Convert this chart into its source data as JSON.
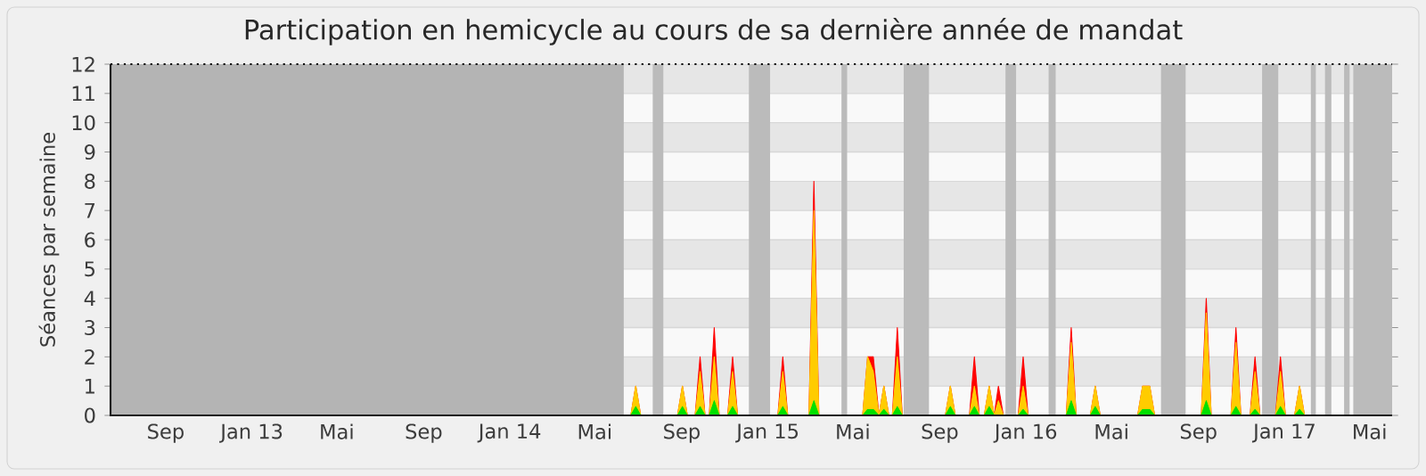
{
  "chart_data": {
    "type": "area",
    "title": "Participation en hemicycle au cours de sa dernière année de mandat",
    "ylabel": "Séances par semaine",
    "x": [
      "2014-06-11",
      "2014-06-21",
      "2014-06-28",
      "2014-07-05",
      "2014-08-26",
      "2014-09-02",
      "2014-09-09",
      "2014-09-20",
      "2014-09-27",
      "2014-10-04",
      "2014-10-10",
      "2014-10-17",
      "2014-10-24",
      "2014-11-05",
      "2014-11-12",
      "2014-11-19",
      "2015-01-15",
      "2015-01-22",
      "2015-01-29",
      "2015-02-28",
      "2015-03-07",
      "2015-03-14",
      "2015-05-15",
      "2015-05-22",
      "2015-05-30",
      "2015-06-07",
      "2015-06-14",
      "2015-06-21",
      "2015-06-26",
      "2015-07-03",
      "2015-07-10",
      "2015-09-09",
      "2015-09-16",
      "2015-09-23",
      "2015-10-13",
      "2015-10-20",
      "2015-10-27",
      "2015-11-03",
      "2015-11-10",
      "2015-11-17",
      "2015-11-23",
      "2015-11-30",
      "2015-12-21",
      "2015-12-28",
      "2016-01-04",
      "2016-02-27",
      "2016-03-05",
      "2016-03-12",
      "2016-04-01",
      "2016-04-08",
      "2016-04-15",
      "2016-06-07",
      "2016-06-14",
      "2016-06-24",
      "2016-07-01",
      "2016-09-05",
      "2016-09-12",
      "2016-09-19",
      "2016-10-17",
      "2016-10-24",
      "2016-10-31",
      "2016-11-13",
      "2016-11-20",
      "2016-11-27",
      "2016-12-19",
      "2016-12-26",
      "2017-01-02",
      "2017-01-15",
      "2017-01-22",
      "2017-01-29",
      "2017-05-20"
    ],
    "series": [
      {
        "color": "#ff0000",
        "values": [
          0,
          0,
          1,
          0,
          0,
          1,
          0,
          0,
          2,
          0,
          0,
          3,
          0,
          0,
          2,
          0,
          0,
          2,
          0,
          0,
          8,
          0,
          0,
          2,
          2,
          0,
          1,
          0,
          0,
          3,
          0,
          0,
          1,
          0,
          0,
          2,
          0,
          0,
          1,
          0,
          1,
          0,
          0,
          2,
          0,
          0,
          3,
          0,
          0,
          1,
          0,
          0,
          1,
          1,
          0,
          0,
          4,
          0,
          0,
          3,
          0,
          0,
          2,
          0,
          0,
          2,
          0,
          0,
          1,
          0,
          0
        ]
      },
      {
        "color": "#ffcc00",
        "values": [
          0,
          0,
          1,
          0,
          0,
          1,
          0,
          0,
          1.5,
          0,
          0,
          2,
          0,
          0,
          1.5,
          0,
          0,
          1.5,
          0,
          0,
          7,
          0,
          0,
          2,
          1.5,
          0,
          1,
          0,
          0,
          2,
          0,
          0,
          1,
          0,
          0,
          1,
          0,
          0,
          1,
          0,
          0.5,
          0,
          0,
          1,
          0,
          0,
          2.5,
          0,
          0,
          1,
          0,
          0,
          1,
          1,
          0,
          0,
          3.5,
          0,
          0,
          2.5,
          0,
          0,
          1.5,
          0,
          0,
          1.5,
          0,
          0,
          1,
          0,
          0
        ]
      },
      {
        "color": "#00e000",
        "values": [
          0,
          0,
          0.3,
          0,
          0,
          0.3,
          0,
          0,
          0.3,
          0,
          0,
          0.5,
          0,
          0,
          0.3,
          0,
          0,
          0.3,
          0,
          0,
          0.5,
          0,
          0,
          0.2,
          0.2,
          0,
          0.2,
          0,
          0,
          0.3,
          0,
          0,
          0.3,
          0,
          0,
          0.3,
          0,
          0,
          0.3,
          0,
          0,
          0,
          0,
          0.2,
          0,
          0,
          0.5,
          0,
          0,
          0.3,
          0,
          0,
          0.2,
          0.2,
          0,
          0,
          0.5,
          0,
          0,
          0.3,
          0,
          0,
          0.2,
          0,
          0,
          0.3,
          0,
          0,
          0.2,
          0,
          0
        ]
      }
    ],
    "xlim": [
      "2012-06-15",
      "2017-06-02"
    ],
    "xticks": [
      {
        "value": "2012-09-01",
        "label": "Sep"
      },
      {
        "value": "2013-01-01",
        "label": "Jan 13"
      },
      {
        "value": "2013-05-01",
        "label": "Mai"
      },
      {
        "value": "2013-09-01",
        "label": "Sep"
      },
      {
        "value": "2014-01-01",
        "label": "Jan 14"
      },
      {
        "value": "2014-05-01",
        "label": "Mai"
      },
      {
        "value": "2014-09-01",
        "label": "Sep"
      },
      {
        "value": "2015-01-01",
        "label": "Jan 15"
      },
      {
        "value": "2015-05-01",
        "label": "Mai"
      },
      {
        "value": "2015-09-01",
        "label": "Sep"
      },
      {
        "value": "2016-01-01",
        "label": "Jan 16"
      },
      {
        "value": "2016-05-01",
        "label": "Mai"
      },
      {
        "value": "2016-09-01",
        "label": "Sep"
      },
      {
        "value": "2017-01-01",
        "label": "Jan 17"
      },
      {
        "value": "2017-05-01",
        "label": "Mai"
      }
    ],
    "ylim": [
      0,
      12
    ],
    "yticks": [
      0,
      1,
      2,
      3,
      4,
      5,
      6,
      7,
      8,
      9,
      10,
      11,
      12
    ],
    "grid": "y",
    "bands": [
      {
        "axis": "x",
        "from": "2012-06-15",
        "to": "2014-06-11",
        "color": "#b4b4b4"
      },
      {
        "axis": "x",
        "from": "2014-07-22",
        "to": "2014-08-06",
        "color": "#bbbbbb"
      },
      {
        "axis": "x",
        "from": "2014-12-05",
        "to": "2015-01-04",
        "color": "#bbbbbb"
      },
      {
        "axis": "x",
        "from": "2015-04-15",
        "to": "2015-04-23",
        "color": "#bbbbbb"
      },
      {
        "axis": "x",
        "from": "2015-07-12",
        "to": "2015-08-17",
        "color": "#bbbbbb"
      },
      {
        "axis": "x",
        "from": "2015-12-03",
        "to": "2015-12-18",
        "color": "#bbbbbb"
      },
      {
        "axis": "x",
        "from": "2016-02-02",
        "to": "2016-02-12",
        "color": "#bbbbbb"
      },
      {
        "axis": "x",
        "from": "2016-07-10",
        "to": "2016-08-14",
        "color": "#bbbbbb"
      },
      {
        "axis": "x",
        "from": "2016-11-30",
        "to": "2016-12-23",
        "color": "#bbbbbb"
      },
      {
        "axis": "x",
        "from": "2017-02-07",
        "to": "2017-02-14",
        "color": "#bbbbbb"
      },
      {
        "axis": "x",
        "from": "2017-02-27",
        "to": "2017-03-08",
        "color": "#bbbbbb"
      },
      {
        "axis": "x",
        "from": "2017-03-26",
        "to": "2017-04-03",
        "color": "#bbbbbb"
      },
      {
        "axis": "x",
        "from": "2017-04-08",
        "to": "2017-06-02",
        "color": "#bbbbbb"
      }
    ]
  }
}
